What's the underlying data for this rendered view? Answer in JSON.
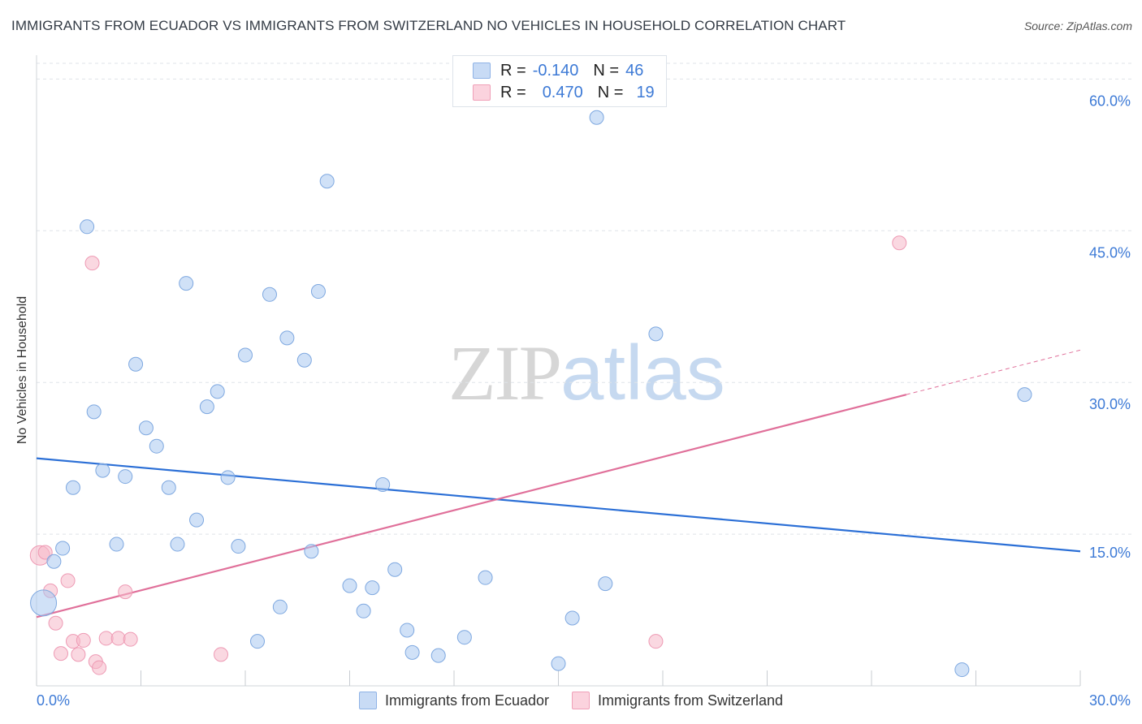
{
  "title": "IMMIGRANTS FROM ECUADOR VS IMMIGRANTS FROM SWITZERLAND NO VEHICLES IN HOUSEHOLD CORRELATION CHART",
  "source": "Source: ZipAtlas.com",
  "watermark": {
    "zip": "ZIP",
    "atlas": "atlas"
  },
  "legend": {
    "rows": [
      {
        "r_label": "R =",
        "r_value": "-0.140",
        "n_label": "N =",
        "n_value": "46",
        "color": "#a9c8f0"
      },
      {
        "r_label": "R =",
        "r_value": "0.470",
        "n_label": "N =",
        "n_value": "19",
        "color": "#f5b8c8"
      }
    ]
  },
  "bottom_legend": {
    "ecuador": "Immigrants from Ecuador",
    "switzerland": "Immigrants from Switzerland"
  },
  "chart_data": {
    "type": "scatter",
    "title": "IMMIGRANTS FROM ECUADOR VS IMMIGRANTS FROM SWITZERLAND NO VEHICLES IN HOUSEHOLD CORRELATION CHART",
    "xlabel": "",
    "ylabel": "No Vehicles in Household",
    "xlim": [
      0,
      30
    ],
    "ylim": [
      0,
      63
    ],
    "x_tick_labels": [
      "0.0%",
      "30.0%"
    ],
    "y_ticks": [
      15,
      30,
      45,
      60
    ],
    "y_tick_labels": [
      "15.0%",
      "30.0%",
      "45.0%",
      "60.0%"
    ],
    "grid": true,
    "colors": {
      "ecuador": "#a9c8f0",
      "ecuador_line": "#2b6fd6",
      "switzerland": "#f5b8c8",
      "switzerland_line": "#e0709a"
    },
    "series": [
      {
        "name": "Immigrants from Ecuador",
        "points": [
          [
            0.2,
            8.2
          ],
          [
            0.5,
            12.3
          ],
          [
            0.75,
            13.6
          ],
          [
            1.05,
            19.6
          ],
          [
            1.45,
            45.4
          ],
          [
            1.65,
            27.1
          ],
          [
            1.9,
            21.3
          ],
          [
            2.3,
            14.0
          ],
          [
            2.55,
            20.7
          ],
          [
            2.85,
            31.8
          ],
          [
            3.15,
            25.5
          ],
          [
            3.45,
            23.7
          ],
          [
            3.8,
            19.6
          ],
          [
            4.05,
            14.0
          ],
          [
            4.3,
            39.8
          ],
          [
            4.6,
            16.4
          ],
          [
            4.9,
            27.6
          ],
          [
            5.2,
            29.1
          ],
          [
            5.5,
            20.6
          ],
          [
            5.8,
            13.8
          ],
          [
            6.0,
            32.7
          ],
          [
            6.35,
            4.4
          ],
          [
            6.7,
            38.7
          ],
          [
            7.0,
            7.8
          ],
          [
            7.2,
            34.4
          ],
          [
            7.7,
            32.2
          ],
          [
            7.9,
            13.3
          ],
          [
            8.1,
            39.0
          ],
          [
            8.35,
            49.9
          ],
          [
            9.0,
            9.9
          ],
          [
            9.4,
            7.4
          ],
          [
            9.65,
            9.7
          ],
          [
            9.95,
            19.9
          ],
          [
            10.3,
            11.5
          ],
          [
            10.65,
            5.5
          ],
          [
            10.8,
            3.3
          ],
          [
            11.55,
            3.0
          ],
          [
            12.3,
            4.8
          ],
          [
            12.9,
            10.7
          ],
          [
            15.0,
            2.2
          ],
          [
            15.4,
            6.7
          ],
          [
            16.1,
            56.2
          ],
          [
            16.35,
            10.1
          ],
          [
            17.8,
            34.8
          ],
          [
            26.6,
            1.6
          ],
          [
            28.4,
            28.8
          ]
        ],
        "trend": {
          "x": [
            0,
            30
          ],
          "y": [
            22.5,
            13.3
          ]
        }
      },
      {
        "name": "Immigrants from Switzerland",
        "points": [
          [
            0.1,
            12.9
          ],
          [
            0.25,
            13.2
          ],
          [
            0.4,
            9.4
          ],
          [
            0.55,
            6.2
          ],
          [
            0.7,
            3.2
          ],
          [
            0.9,
            10.4
          ],
          [
            1.05,
            4.4
          ],
          [
            1.2,
            3.1
          ],
          [
            1.35,
            4.5
          ],
          [
            1.6,
            41.8
          ],
          [
            1.7,
            2.4
          ],
          [
            1.8,
            1.8
          ],
          [
            2.0,
            4.7
          ],
          [
            2.35,
            4.7
          ],
          [
            2.55,
            9.3
          ],
          [
            2.7,
            4.6
          ],
          [
            5.3,
            3.1
          ],
          [
            17.8,
            4.4
          ],
          [
            24.8,
            43.8
          ]
        ],
        "trend": {
          "x": [
            0,
            25
          ],
          "y": [
            6.8,
            28.8
          ]
        },
        "trend_extension": {
          "x": [
            25,
            30
          ],
          "y": [
            28.8,
            33.2
          ]
        }
      }
    ]
  }
}
